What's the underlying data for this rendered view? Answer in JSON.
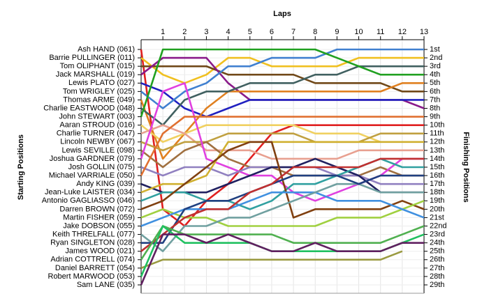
{
  "chart_data": {
    "type": "line",
    "title": "Laps",
    "y_label": "Starting Positions",
    "y2_label": "Finishing Positions",
    "x": [
      0,
      1,
      2,
      3,
      4,
      5,
      6,
      7,
      8,
      9,
      10,
      11,
      12,
      13
    ],
    "xlim": [
      0,
      13
    ],
    "xticks": [
      1,
      2,
      3,
      4,
      5,
      6,
      7,
      8,
      9,
      10,
      11,
      12,
      13
    ],
    "ylim": [
      1,
      29
    ],
    "yticks": [
      {
        "value": 1,
        "label": "1st"
      },
      {
        "value": 2,
        "label": "2nd"
      },
      {
        "value": 3,
        "label": "3rd"
      },
      {
        "value": 4,
        "label": "4th"
      },
      {
        "value": 5,
        "label": "5th"
      },
      {
        "value": 6,
        "label": "6th"
      },
      {
        "value": 7,
        "label": "7th"
      },
      {
        "value": 8,
        "label": "8th"
      },
      {
        "value": 9,
        "label": "9th"
      },
      {
        "value": 10,
        "label": "10th"
      },
      {
        "value": 11,
        "label": "11th"
      },
      {
        "value": 12,
        "label": "12th"
      },
      {
        "value": 13,
        "label": "13th"
      },
      {
        "value": 14,
        "label": "14th"
      },
      {
        "value": 15,
        "label": "15th"
      },
      {
        "value": 16,
        "label": "16th"
      },
      {
        "value": 17,
        "label": "17th"
      },
      {
        "value": 18,
        "label": "18th"
      },
      {
        "value": 19,
        "label": "19th"
      },
      {
        "value": 20,
        "label": "20th"
      },
      {
        "value": 21,
        "label": "21st"
      },
      {
        "value": 22,
        "label": "22nd"
      },
      {
        "value": 23,
        "label": "23rd"
      },
      {
        "value": 24,
        "label": "24th"
      },
      {
        "value": 25,
        "label": "25th"
      },
      {
        "value": 26,
        "label": "26th"
      },
      {
        "value": 27,
        "label": "27th"
      },
      {
        "value": 28,
        "label": "28th"
      },
      {
        "value": 29,
        "label": "29th"
      }
    ],
    "grid": true,
    "series": [
      {
        "name": "Ash HAND (061)",
        "color": "#e02020",
        "values": [
          1,
          20,
          22,
          19,
          17,
          14,
          11,
          10,
          10,
          10,
          10,
          10,
          10,
          10
        ]
      },
      {
        "name": "Barrie PULLINGER (011)",
        "color": "#f0c020",
        "values": [
          2,
          4,
          5,
          4,
          2,
          2,
          3,
          3,
          3,
          3,
          2,
          2,
          2,
          2
        ]
      },
      {
        "name": "Tom OLIPHANT (015)",
        "color": "#704818",
        "values": [
          3,
          3,
          3,
          3,
          4,
          4,
          4,
          4,
          5,
          5,
          5,
          5,
          6,
          6
        ]
      },
      {
        "name": "Jack MARSHALL (019)",
        "color": "#8a1a8a",
        "values": [
          4,
          2,
          2,
          2,
          5,
          7,
          7,
          7,
          7,
          7,
          7,
          7,
          7,
          8
        ]
      },
      {
        "name": "Lewis PLATO (027)",
        "color": "#2020c0",
        "values": [
          5,
          6,
          8,
          9,
          8,
          7,
          7,
          7,
          7,
          7,
          7,
          7,
          7,
          7
        ]
      },
      {
        "name": "Tom WRIGLEY (025)",
        "color": "#4080d0",
        "values": [
          6,
          8,
          6,
          5,
          3,
          3,
          2,
          2,
          2,
          1,
          1,
          1,
          1,
          1
        ]
      },
      {
        "name": "Thomas ARME (049)",
        "color": "#e08020",
        "values": [
          7,
          14,
          11,
          8,
          6,
          6,
          6,
          6,
          6,
          6,
          6,
          6,
          5,
          5
        ]
      },
      {
        "name": "Charlie EASTWOOD (048)",
        "color": "#406060",
        "values": [
          8,
          10,
          7,
          6,
          6,
          5,
          5,
          5,
          4,
          4,
          3,
          3,
          3,
          3
        ]
      },
      {
        "name": "John STEWART (003)",
        "color": "#20a020",
        "values": [
          9,
          1,
          1,
          1,
          1,
          1,
          1,
          1,
          1,
          2,
          3,
          4,
          4,
          4
        ]
      },
      {
        "name": "Aaran STROUD (016)",
        "color": "#f0d060",
        "values": [
          10,
          12,
          11,
          10,
          10,
          10,
          10,
          10,
          11,
          11,
          11,
          12,
          null,
          null
        ]
      },
      {
        "name": "Charlie TURNER (047)",
        "color": "#e8a090",
        "values": [
          11,
          10,
          11,
          13,
          13,
          13,
          14,
          14,
          14,
          14,
          13,
          13,
          13,
          13
        ]
      },
      {
        "name": "Lincoln NEWBY (067)",
        "color": "#c0a040",
        "values": [
          12,
          13,
          12,
          12,
          11,
          11,
          11,
          11,
          12,
          12,
          12,
          11,
          11,
          11
        ]
      },
      {
        "name": "Lewis SEVILLE (098)",
        "color": "#a07040",
        "values": [
          13,
          15,
          13,
          12,
          14,
          15,
          15,
          16,
          16,
          16,
          16,
          15,
          16,
          16
        ]
      },
      {
        "name": "Joshua GARDNER (079)",
        "color": "#e040e0",
        "values": [
          14,
          6,
          5,
          14,
          15,
          16,
          16,
          18,
          19,
          18,
          17,
          16,
          14,
          14
        ]
      },
      {
        "name": "Josh GOLLIN (075)",
        "color": "#9080c0",
        "values": [
          15,
          16,
          15,
          15,
          16,
          15,
          15,
          15,
          15,
          16,
          16,
          17,
          17,
          17
        ]
      },
      {
        "name": "Michael VARRIALE (050)",
        "color": "#e07030",
        "values": [
          16,
          11,
          9,
          9,
          9,
          9,
          9,
          9,
          9,
          9,
          9,
          9,
          9,
          9
        ]
      },
      {
        "name": "Andy KING (039)",
        "color": "#202060",
        "values": [
          17,
          18,
          18,
          18,
          17,
          16,
          15,
          15,
          14,
          15,
          16,
          18,
          18,
          18
        ]
      },
      {
        "name": "Jean-Luke LAISTER (034)",
        "color": "#d0b030",
        "values": [
          18,
          17,
          17,
          16,
          12,
          12,
          12,
          12,
          12,
          12,
          12,
          12,
          12,
          12
        ]
      },
      {
        "name": "Antonio GAGLIASSO (046)",
        "color": "#30a0a0",
        "values": [
          19,
          18,
          18,
          19,
          19,
          20,
          19,
          17,
          17,
          16,
          15,
          14,
          15,
          15
        ]
      },
      {
        "name": "Darren BROWN (072)",
        "color": "#804010",
        "values": [
          20,
          19,
          17,
          15,
          13,
          12,
          12,
          21,
          20,
          20,
          20,
          20,
          19,
          20
        ]
      },
      {
        "name": "Martin FISHER (059)",
        "color": "#a0d040",
        "values": [
          21,
          20,
          21,
          21,
          22,
          22,
          22,
          22,
          22,
          21,
          21,
          21,
          20,
          19
        ]
      },
      {
        "name": "Jake DOBSON (055)",
        "color": "#4090e0",
        "values": [
          22,
          21,
          20,
          20,
          20,
          19,
          18,
          18,
          18,
          19,
          19,
          19,
          20,
          21
        ]
      },
      {
        "name": "Keith THRELFALL (077)",
        "color": "#70a0a0",
        "values": [
          23,
          25,
          22,
          22,
          21,
          21,
          20,
          19,
          18,
          17,
          17,
          18,
          18,
          18
        ]
      },
      {
        "name": "Ryan SINGLETON (028)",
        "color": "#204080",
        "values": [
          24,
          24,
          20,
          19,
          19,
          18,
          17,
          16,
          16,
          16,
          17,
          16,
          16,
          16
        ]
      },
      {
        "name": "James WOOD (021)",
        "color": "#c03030",
        "values": [
          25,
          23,
          21,
          20,
          20,
          18,
          17,
          15,
          15,
          15,
          15,
          14,
          14,
          14
        ]
      },
      {
        "name": "Adrian COTTRELL (074)",
        "color": "#50b050",
        "values": [
          26,
          22,
          23,
          23,
          23,
          23,
          23,
          24,
          24,
          24,
          24,
          24,
          23,
          22
        ]
      },
      {
        "name": "Daniel BARRETT (054)",
        "color": "#9a9a40",
        "values": [
          27,
          26,
          26,
          26,
          26,
          26,
          26,
          26,
          26,
          26,
          26,
          26,
          25,
          null
        ]
      },
      {
        "name": "Robert MARWOOD (053)",
        "color": "#20c060",
        "values": [
          28,
          22,
          24,
          24,
          24,
          24,
          25,
          25,
          25,
          25,
          25,
          25,
          24,
          23
        ]
      },
      {
        "name": "Sam LANE (035)",
        "color": "#602060",
        "values": [
          29,
          23,
          23,
          24,
          23,
          24,
          25,
          25,
          24,
          25,
          25,
          25,
          24,
          24
        ]
      }
    ]
  }
}
